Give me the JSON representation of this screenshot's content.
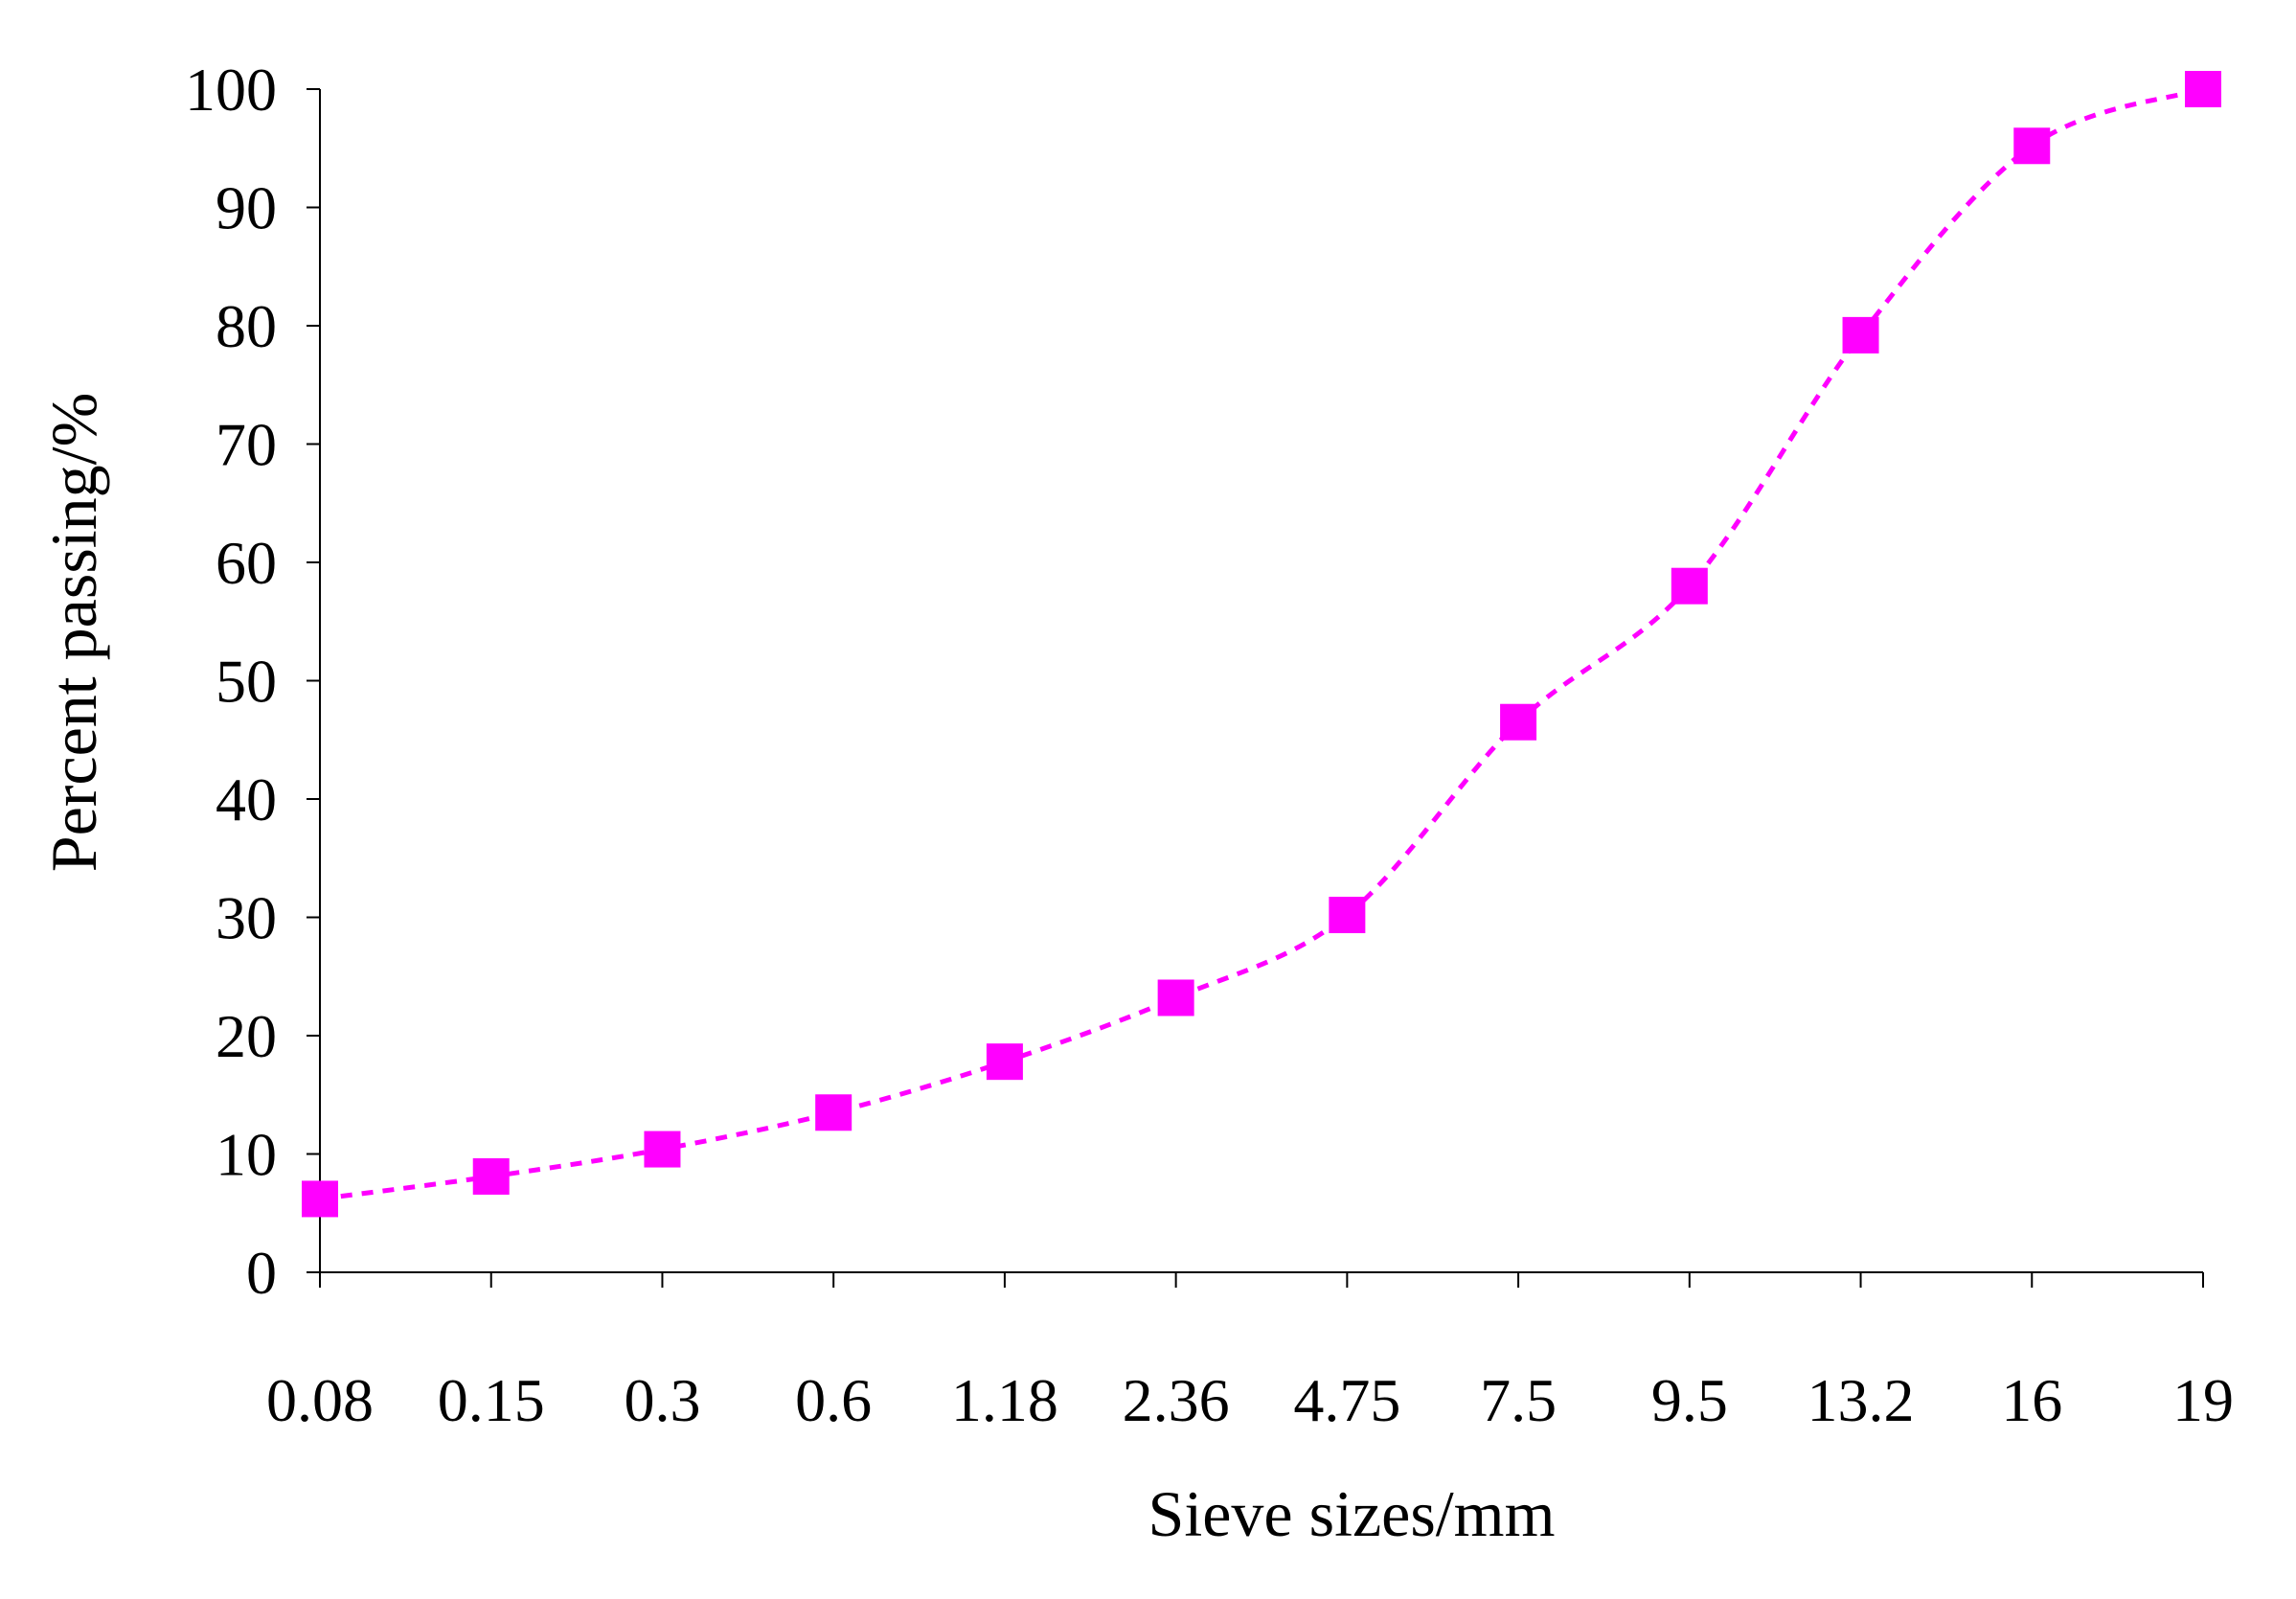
{
  "chart_data": {
    "type": "line",
    "title": "",
    "xlabel": "Sieve sizes/mm",
    "ylabel": "Percent passing/%",
    "categories": [
      "0.08",
      "0.15",
      "0.3",
      "0.6",
      "1.18",
      "2.36",
      "4.75",
      "7.5",
      "9.5",
      "13.2",
      "16",
      "19"
    ],
    "ylim": [
      0,
      100
    ],
    "yticks": [
      0,
      10,
      20,
      30,
      40,
      50,
      60,
      70,
      80,
      90,
      100
    ],
    "grid": false,
    "legend": "none",
    "series": [
      {
        "values": [
          6.2,
          8.1,
          10.4,
          13.5,
          17.8,
          23.2,
          30.2,
          46.5,
          58.0,
          79.2,
          95.2,
          100
        ],
        "color": "#ff00ff",
        "marker": "square",
        "line_style": "dashed-smooth"
      }
    ]
  }
}
